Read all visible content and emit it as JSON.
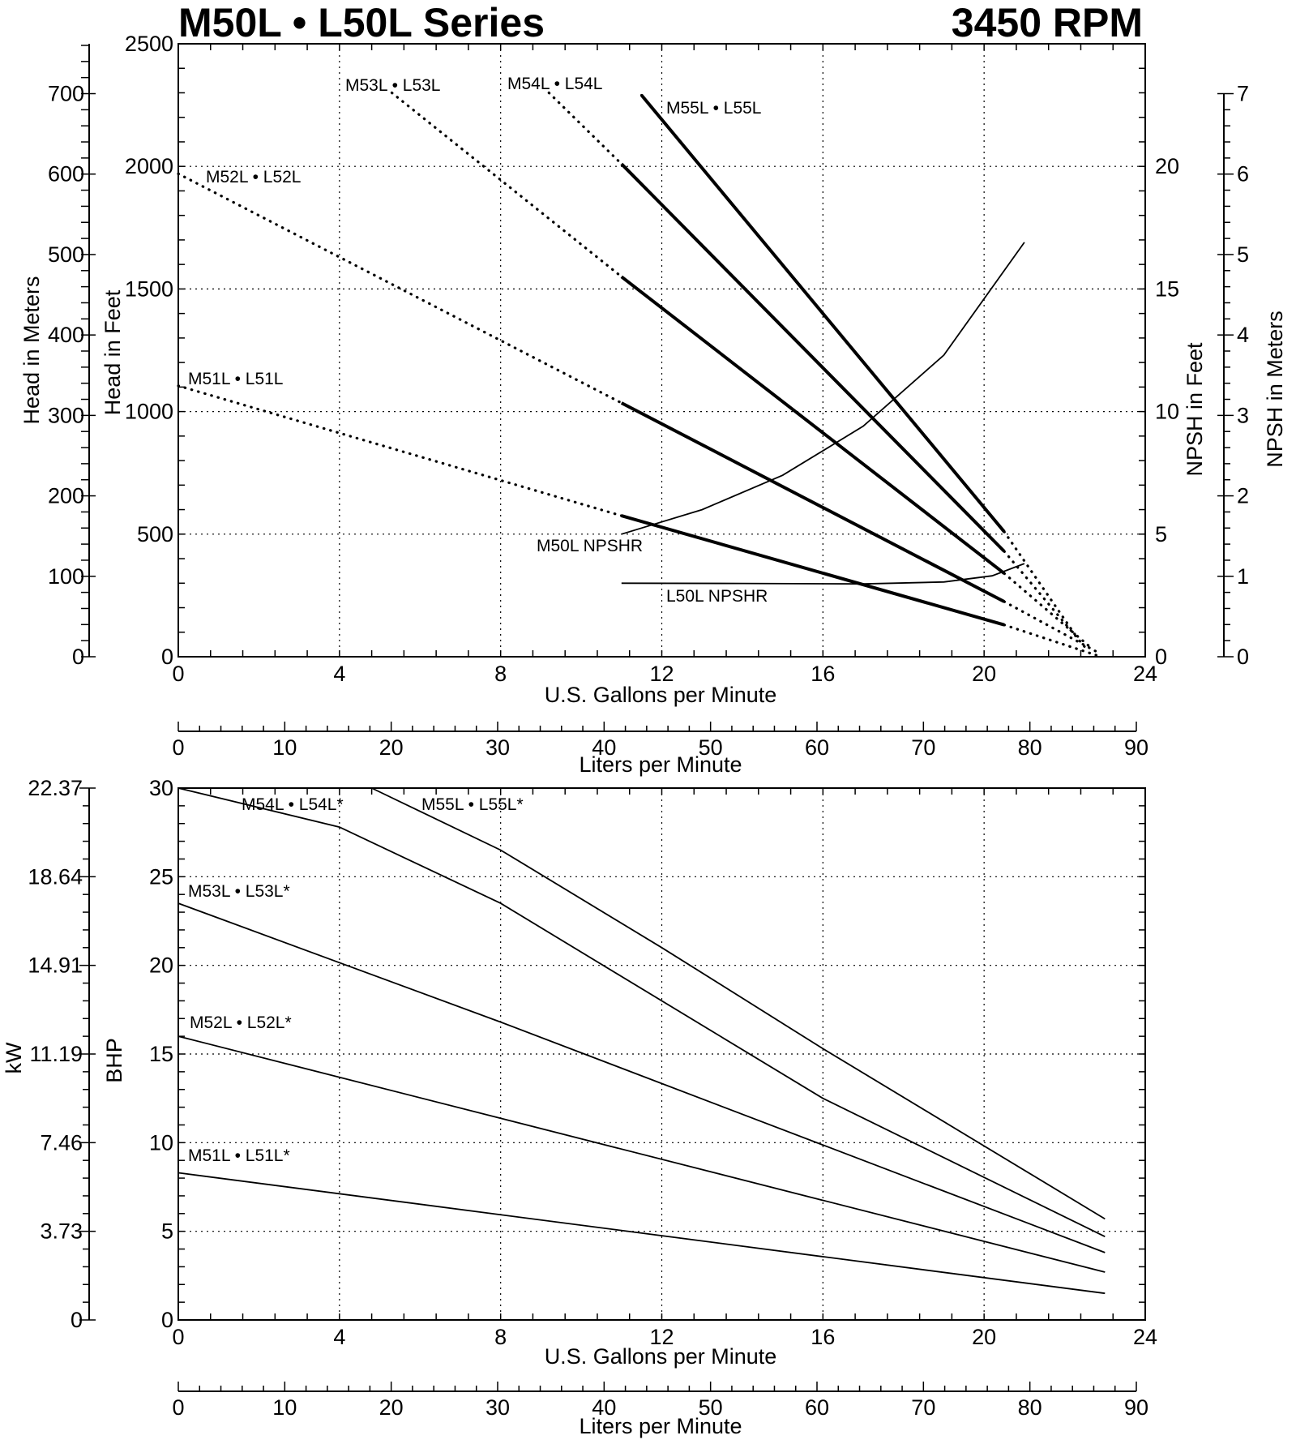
{
  "title": "M50L • L50L Series",
  "rpm_label": "3450 RPM",
  "chart_data": [
    {
      "type": "line",
      "name": "Head and NPSH Curves",
      "xlabel": "U.S. Gallons per Minute",
      "xlabel_secondary": "Liters per Minute",
      "ylabel": "Head in Feet",
      "ylabel_secondary": "Head in Meters",
      "ylabel_right": "NPSH in Feet",
      "ylabel_right_secondary": "NPSH in Meters",
      "xlim": [
        0,
        24
      ],
      "ylim": [
        0,
        2500
      ],
      "x_ticks": [
        "0",
        "4",
        "8",
        "12",
        "16",
        "20",
        "24"
      ],
      "y_ticks": [
        "0",
        "500",
        "1000",
        "1500",
        "2000",
        "2500"
      ],
      "lpm_ticks": [
        "0",
        "10",
        "20",
        "30",
        "40",
        "50",
        "60",
        "70",
        "80",
        "90"
      ],
      "meters_ticks": [
        "0",
        "100",
        "200",
        "300",
        "400",
        "500",
        "600",
        "700"
      ],
      "npsh_ft_ticks": [
        "0",
        "5",
        "10",
        "15",
        "20"
      ],
      "npsh_m_ticks": [
        "0",
        "1",
        "2",
        "3",
        "4",
        "5",
        "6",
        "7"
      ],
      "grid": true,
      "series": [
        {
          "name": "M51L • L51L",
          "style": "head",
          "solid_range": [
            11,
            20.5
          ],
          "points": [
            [
              0,
              1105
            ],
            [
              11,
              575
            ],
            [
              20.5,
              130
            ],
            [
              22.9,
              0
            ]
          ]
        },
        {
          "name": "M52L • L52L",
          "style": "head",
          "solid_range": [
            11,
            20.5
          ],
          "points": [
            [
              0,
              1970
            ],
            [
              11,
              1035
            ],
            [
              20.5,
              225
            ],
            [
              22.8,
              20
            ]
          ]
        },
        {
          "name": "M53L • L53L",
          "style": "head",
          "solid_range": [
            11,
            20.5
          ],
          "points": [
            [
              5.3,
              2300
            ],
            [
              11,
              1550
            ],
            [
              20.5,
              340
            ],
            [
              22.7,
              30
            ]
          ]
        },
        {
          "name": "M54L • L54L",
          "style": "head",
          "solid_range": [
            11,
            20.5
          ],
          "points": [
            [
              9.2,
              2300
            ],
            [
              11,
              2010
            ],
            [
              20.5,
              430
            ],
            [
              22.5,
              40
            ]
          ]
        },
        {
          "name": "M55L • L55L",
          "style": "head",
          "solid_range": [
            11.5,
            20.5
          ],
          "points": [
            [
              11.5,
              2290
            ],
            [
              20.5,
              510
            ],
            [
              22.3,
              80
            ]
          ]
        },
        {
          "name": "M50L NPSHR",
          "style": "npsh",
          "y_unit": "NPSH feet",
          "points": [
            [
              11,
              5.0
            ],
            [
              13,
              6.0
            ],
            [
              15,
              7.4
            ],
            [
              17,
              9.4
            ],
            [
              19,
              12.3
            ],
            [
              21,
              16.9
            ]
          ]
        },
        {
          "name": "L50L NPSHR",
          "style": "npsh",
          "y_unit": "NPSH feet",
          "points": [
            [
              11,
              3.0
            ],
            [
              14,
              2.99
            ],
            [
              17,
              2.97
            ],
            [
              19,
              3.05
            ],
            [
              20.2,
              3.3
            ],
            [
              21,
              3.8
            ]
          ]
        }
      ],
      "labels": {
        "M51L": "M51L • L51L",
        "M52L": "M52L • L52L",
        "M53L": "M53L • L53L",
        "M54L": "M54L • L54L",
        "M55L": "M55L • L55L",
        "M50L_NPSHR": "M50L NPSHR",
        "L50L_NPSHR": "L50L NPSHR"
      }
    },
    {
      "type": "line",
      "name": "Brake Horsepower Curves",
      "xlabel": "U.S. Gallons per Minute",
      "xlabel_secondary": "Liters per Minute",
      "ylabel": "BHP",
      "ylabel_secondary": "kW",
      "xlim": [
        0,
        24
      ],
      "ylim": [
        0,
        30
      ],
      "x_ticks": [
        "0",
        "4",
        "8",
        "12",
        "16",
        "20",
        "24"
      ],
      "y_ticks": [
        "0",
        "5",
        "10",
        "15",
        "20",
        "25",
        "30"
      ],
      "lpm_ticks": [
        "0",
        "10",
        "20",
        "30",
        "40",
        "50",
        "60",
        "70",
        "80",
        "90"
      ],
      "kw_ticks": [
        "0",
        "3.73",
        "7.46",
        "11.19",
        "14.91",
        "18.64",
        "22.37"
      ],
      "grid": true,
      "series": [
        {
          "name": "M51L • L51L*",
          "points": [
            [
              0,
              8.3
            ],
            [
              23,
              1.5
            ]
          ]
        },
        {
          "name": "M52L • L52L*",
          "points": [
            [
              0,
              16.0
            ],
            [
              23,
              2.7
            ]
          ]
        },
        {
          "name": "M53L • L53L*",
          "points": [
            [
              0,
              23.5
            ],
            [
              8,
              16.8
            ],
            [
              23,
              3.8
            ]
          ]
        },
        {
          "name": "M54L • L54L*",
          "points": [
            [
              0,
              30.0
            ],
            [
              4,
              27.8
            ],
            [
              8,
              23.5
            ],
            [
              16,
              12.5
            ],
            [
              23,
              4.7
            ]
          ]
        },
        {
          "name": "M55L • L55L*",
          "points": [
            [
              4.8,
              30.0
            ],
            [
              8,
              26.5
            ],
            [
              12,
              21.0
            ],
            [
              16,
              15.3
            ],
            [
              23,
              5.7
            ]
          ]
        }
      ],
      "labels": {
        "M51L": "M51L • L51L*",
        "M52L": "M52L • L52L*",
        "M53L": "M53L • L53L*",
        "M54L": "M54L • L54L*",
        "M55L": "M55L • L55L*"
      }
    }
  ]
}
